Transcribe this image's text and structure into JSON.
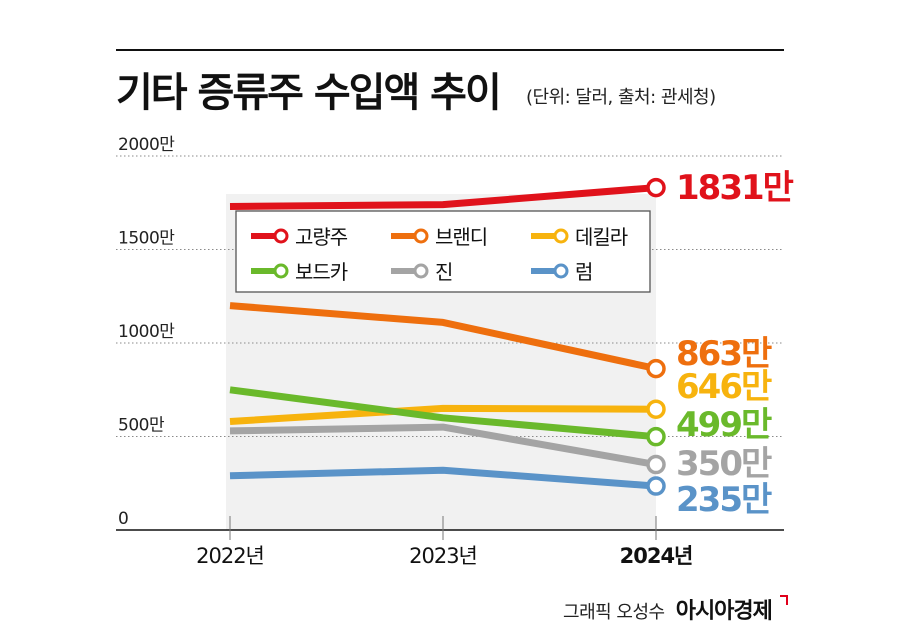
{
  "header": {
    "title": "기타 증류주 수입액 추이",
    "subtitle": "(단위: 달러, 출처: 관세청)"
  },
  "footer": {
    "byline": "그래픽 오성수",
    "brand": "아시아경제"
  },
  "chart_data": {
    "type": "line",
    "title": "기타 증류주 수입액 추이",
    "subtitle": "(단위: 달러, 출처: 관세청)",
    "xlabel": "",
    "ylabel": "",
    "categories": [
      "2022년",
      "2023년",
      "2024년"
    ],
    "ylim": [
      0,
      20000000
    ],
    "yticks": [
      0,
      5000000,
      10000000,
      15000000,
      20000000
    ],
    "ytick_labels": [
      "0",
      "500만",
      "1000만",
      "1500만",
      "2000만"
    ],
    "grid": true,
    "legend_position": "top",
    "highlight_category": "2024년",
    "series": [
      {
        "name": "고량주",
        "color": "#e0121b",
        "values": [
          17300000,
          17400000,
          18310000
        ],
        "end_label": "1831만"
      },
      {
        "name": "브랜디",
        "color": "#ee6f0e",
        "values": [
          12000000,
          11100000,
          8630000
        ],
        "end_label": "863만"
      },
      {
        "name": "데킬라",
        "color": "#f7b30e",
        "values": [
          5800000,
          6500000,
          6460000
        ],
        "end_label": "646만"
      },
      {
        "name": "보드카",
        "color": "#6ab92b",
        "values": [
          7500000,
          6000000,
          4990000
        ],
        "end_label": "499만"
      },
      {
        "name": "진",
        "color": "#a4a4a4",
        "values": [
          5300000,
          5500000,
          3500000
        ],
        "end_label": "350만"
      },
      {
        "name": "럼",
        "color": "#5a93c8",
        "values": [
          2900000,
          3200000,
          2350000
        ],
        "end_label": "235만"
      }
    ]
  }
}
